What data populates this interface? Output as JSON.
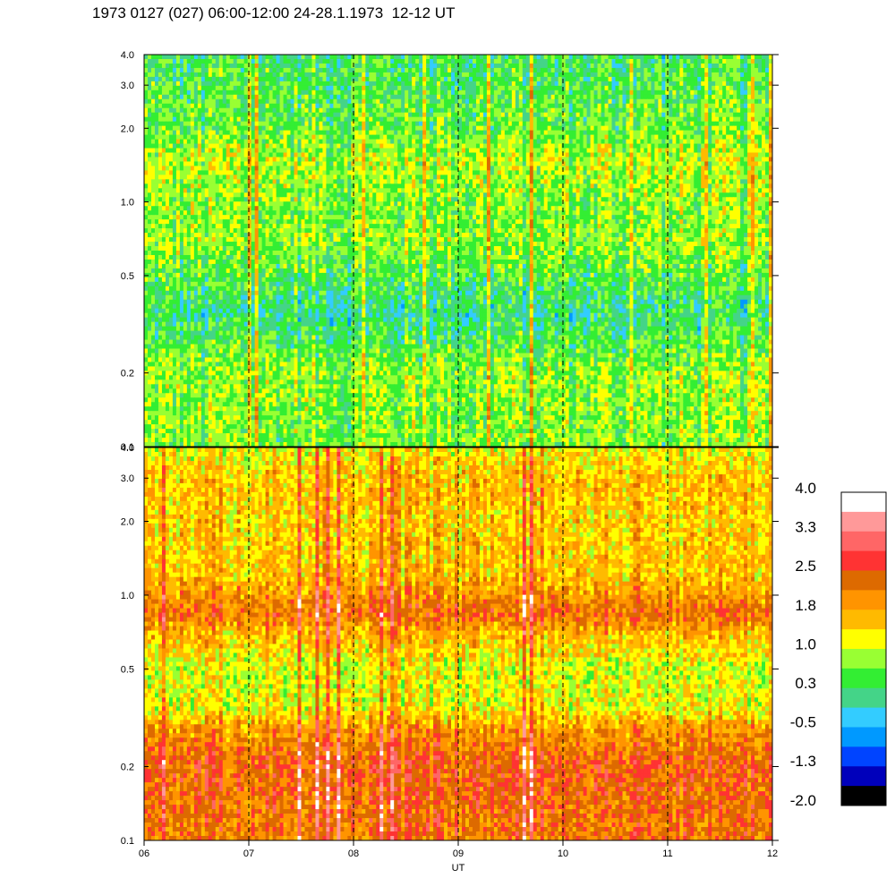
{
  "title": "1973 0127 (027) 06:00-12:00 24-28.1.1973  12-12 UT",
  "chart_data": {
    "type": "heatmap",
    "title": "1973 0127 (027) 06:00-12:00 24-28.1.1973  12-12 UT",
    "xlabel": "UT",
    "x_tick_labels": [
      "06",
      "07",
      "08",
      "09",
      "10",
      "11",
      "12"
    ],
    "x_ticks": [
      6,
      7,
      8,
      9,
      10,
      11,
      12
    ],
    "xlim": [
      6,
      12
    ],
    "y_scale": "log",
    "ylim": [
      0.1,
      4.0
    ],
    "y_tick_labels": [
      "4.0",
      "3.0",
      "2.0",
      "1.0",
      "0.5",
      "0.2",
      "0.1"
    ],
    "y_ticks": [
      4.0,
      3.0,
      2.0,
      1.0,
      0.5,
      0.2,
      0.1
    ],
    "hour_markers": [
      7,
      8,
      9,
      10,
      11
    ],
    "grid": false,
    "panels": [
      {
        "name": "upper",
        "profile": [
          {
            "y": 4.0,
            "level": 0.3
          },
          {
            "y": 3.0,
            "level": 0.4
          },
          {
            "y": 2.0,
            "level": 0.55
          },
          {
            "y": 1.5,
            "level": 0.95
          },
          {
            "y": 1.0,
            "level": 0.7
          },
          {
            "y": 0.7,
            "level": 0.75
          },
          {
            "y": 0.5,
            "level": 0.45
          },
          {
            "y": 0.35,
            "level": 0.1
          },
          {
            "y": 0.25,
            "level": 0.5
          },
          {
            "y": 0.2,
            "level": 0.75
          },
          {
            "y": 0.1,
            "level": 0.65
          }
        ]
      },
      {
        "name": "lower",
        "profile": [
          {
            "y": 4.0,
            "level": 1.2
          },
          {
            "y": 3.0,
            "level": 1.6
          },
          {
            "y": 2.0,
            "level": 1.5
          },
          {
            "y": 1.2,
            "level": 1.6
          },
          {
            "y": 0.85,
            "level": 2.3
          },
          {
            "y": 0.7,
            "level": 1.7
          },
          {
            "y": 0.5,
            "level": 1.1
          },
          {
            "y": 0.35,
            "level": 1.2
          },
          {
            "y": 0.28,
            "level": 2.0
          },
          {
            "y": 0.2,
            "level": 2.4
          },
          {
            "y": 0.1,
            "level": 2.2
          }
        ]
      }
    ],
    "colorbar": {
      "tick_labels": [
        "4.0",
        "3.3",
        "2.5",
        "1.8",
        "1.0",
        "0.3",
        "-0.5",
        "-1.3",
        "-2.0"
      ],
      "ticks": [
        4.0,
        3.3,
        2.5,
        1.8,
        1.0,
        0.3,
        -0.5,
        -1.3,
        -2.0
      ],
      "colors_top_to_bottom": [
        "#ffffff",
        "#ff9999",
        "#ff6666",
        "#ff3333",
        "#dd6a00",
        "#ff9400",
        "#ffba00",
        "#ffff00",
        "#99ff33",
        "#33ee33",
        "#44d488",
        "#33ccff",
        "#0099ff",
        "#0044ff",
        "#0000bb",
        "#000000"
      ],
      "range": [
        -2.0,
        4.0
      ]
    }
  }
}
